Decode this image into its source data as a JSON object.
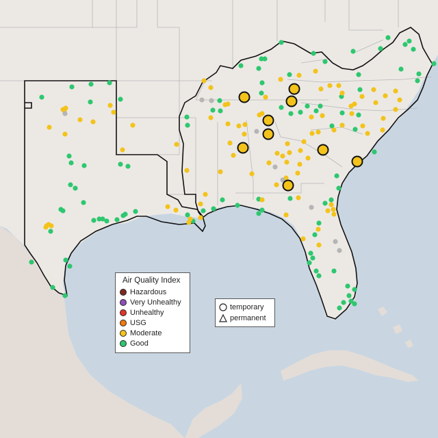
{
  "legend": {
    "title": "Air Quality Index",
    "categories": [
      {
        "label": "Hazardous",
        "color": "#7e2a22"
      },
      {
        "label": "Very Unhealthy",
        "color": "#8e4fb6"
      },
      {
        "label": "Unhealthy",
        "color": "#e0362c"
      },
      {
        "label": "USG",
        "color": "#f07a10"
      },
      {
        "label": "Moderate",
        "color": "#f3c31c"
      },
      {
        "label": "Good",
        "color": "#2ec76f"
      }
    ]
  },
  "shape_legend": {
    "temporary": "temporary",
    "permanent": "permanent"
  },
  "colors": {
    "water": "#c9d6e2",
    "land": "#ece9e5",
    "no_data": "#b5b5b5"
  }
}
